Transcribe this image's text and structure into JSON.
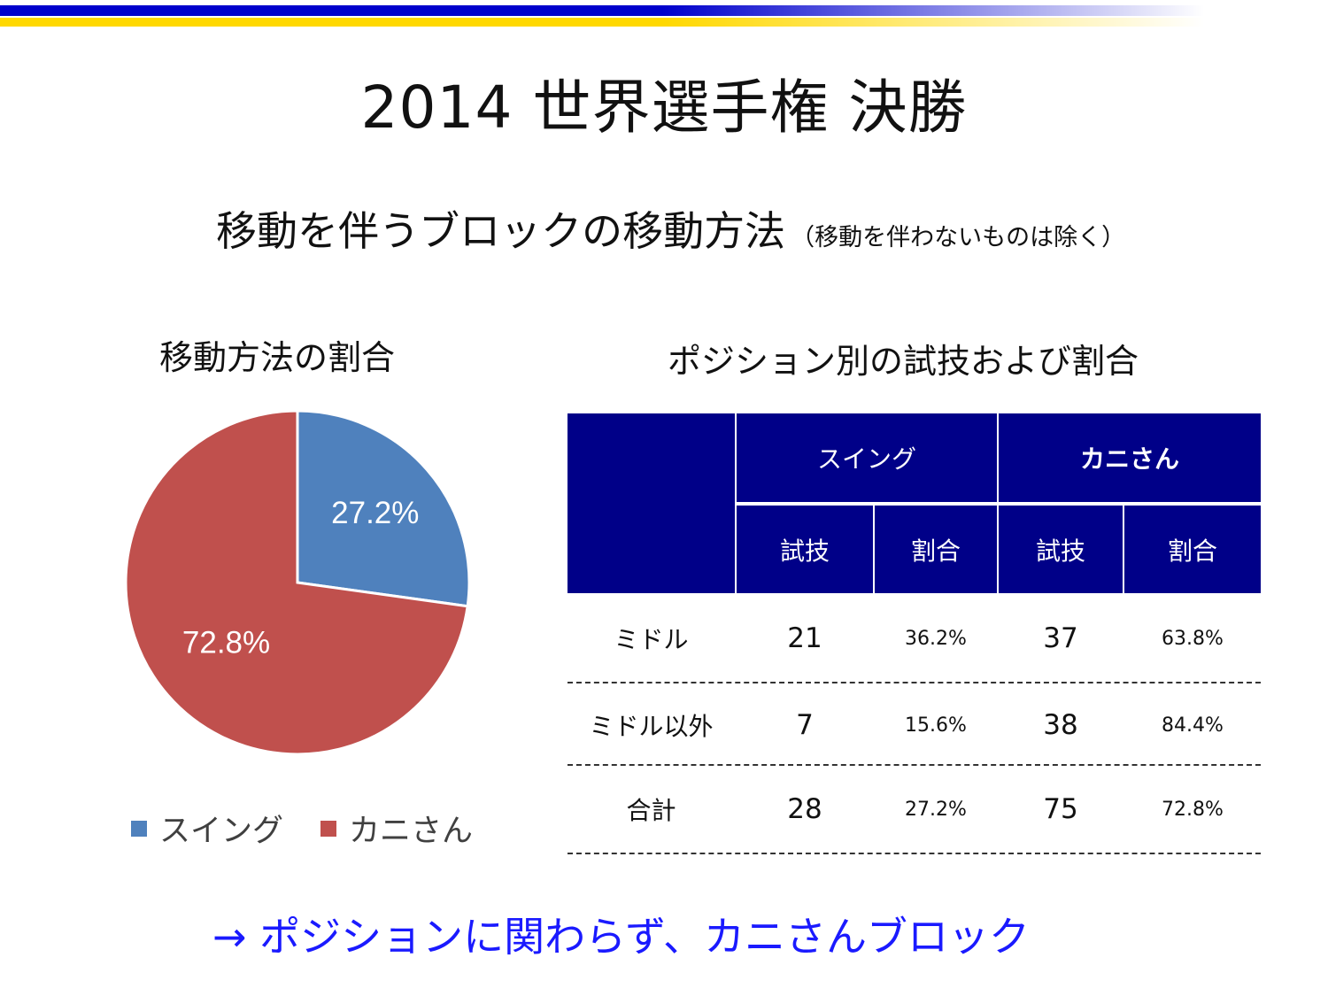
{
  "slide": {
    "title": "2014 世界選手権 決勝",
    "subtitle": "移動を伴うブロックの移動方法",
    "subtitle_note": "（移動を伴わないものは除く）",
    "conclusion": "→ ポジションに関わらず、カニさんブロック"
  },
  "pie_section": {
    "title": "移動方法の割合"
  },
  "table_section": {
    "title": "ポジション別の試技および割合",
    "group_headers": [
      "スイング",
      "カニさん"
    ],
    "sub_headers": [
      "試技",
      "割合",
      "試技",
      "割合"
    ],
    "rows": [
      {
        "label": "ミドル",
        "swing_count": "21",
        "swing_pct": "36.2%",
        "kani_count": "37",
        "kani_pct": "63.8%"
      },
      {
        "label": "ミドル以外",
        "swing_count": "7",
        "swing_pct": "15.6%",
        "kani_count": "38",
        "kani_pct": "84.4%"
      },
      {
        "label": "合計",
        "swing_count": "28",
        "swing_pct": "27.2%",
        "kani_count": "75",
        "kani_pct": "72.8%"
      }
    ]
  },
  "chart_data": {
    "type": "pie",
    "categories": [
      "スイング",
      "カニさん"
    ],
    "values": [
      27.2,
      72.8
    ],
    "data_labels": [
      "27.2%",
      "72.8%"
    ],
    "colors": [
      "#4f81bd",
      "#c0504d"
    ],
    "legend": "bottom"
  },
  "colors": {
    "header_bg": "#000088",
    "conclusion_text": "#1a1aff",
    "top_bar_blue": "#0000cc",
    "top_bar_yellow": "#ffd800"
  }
}
